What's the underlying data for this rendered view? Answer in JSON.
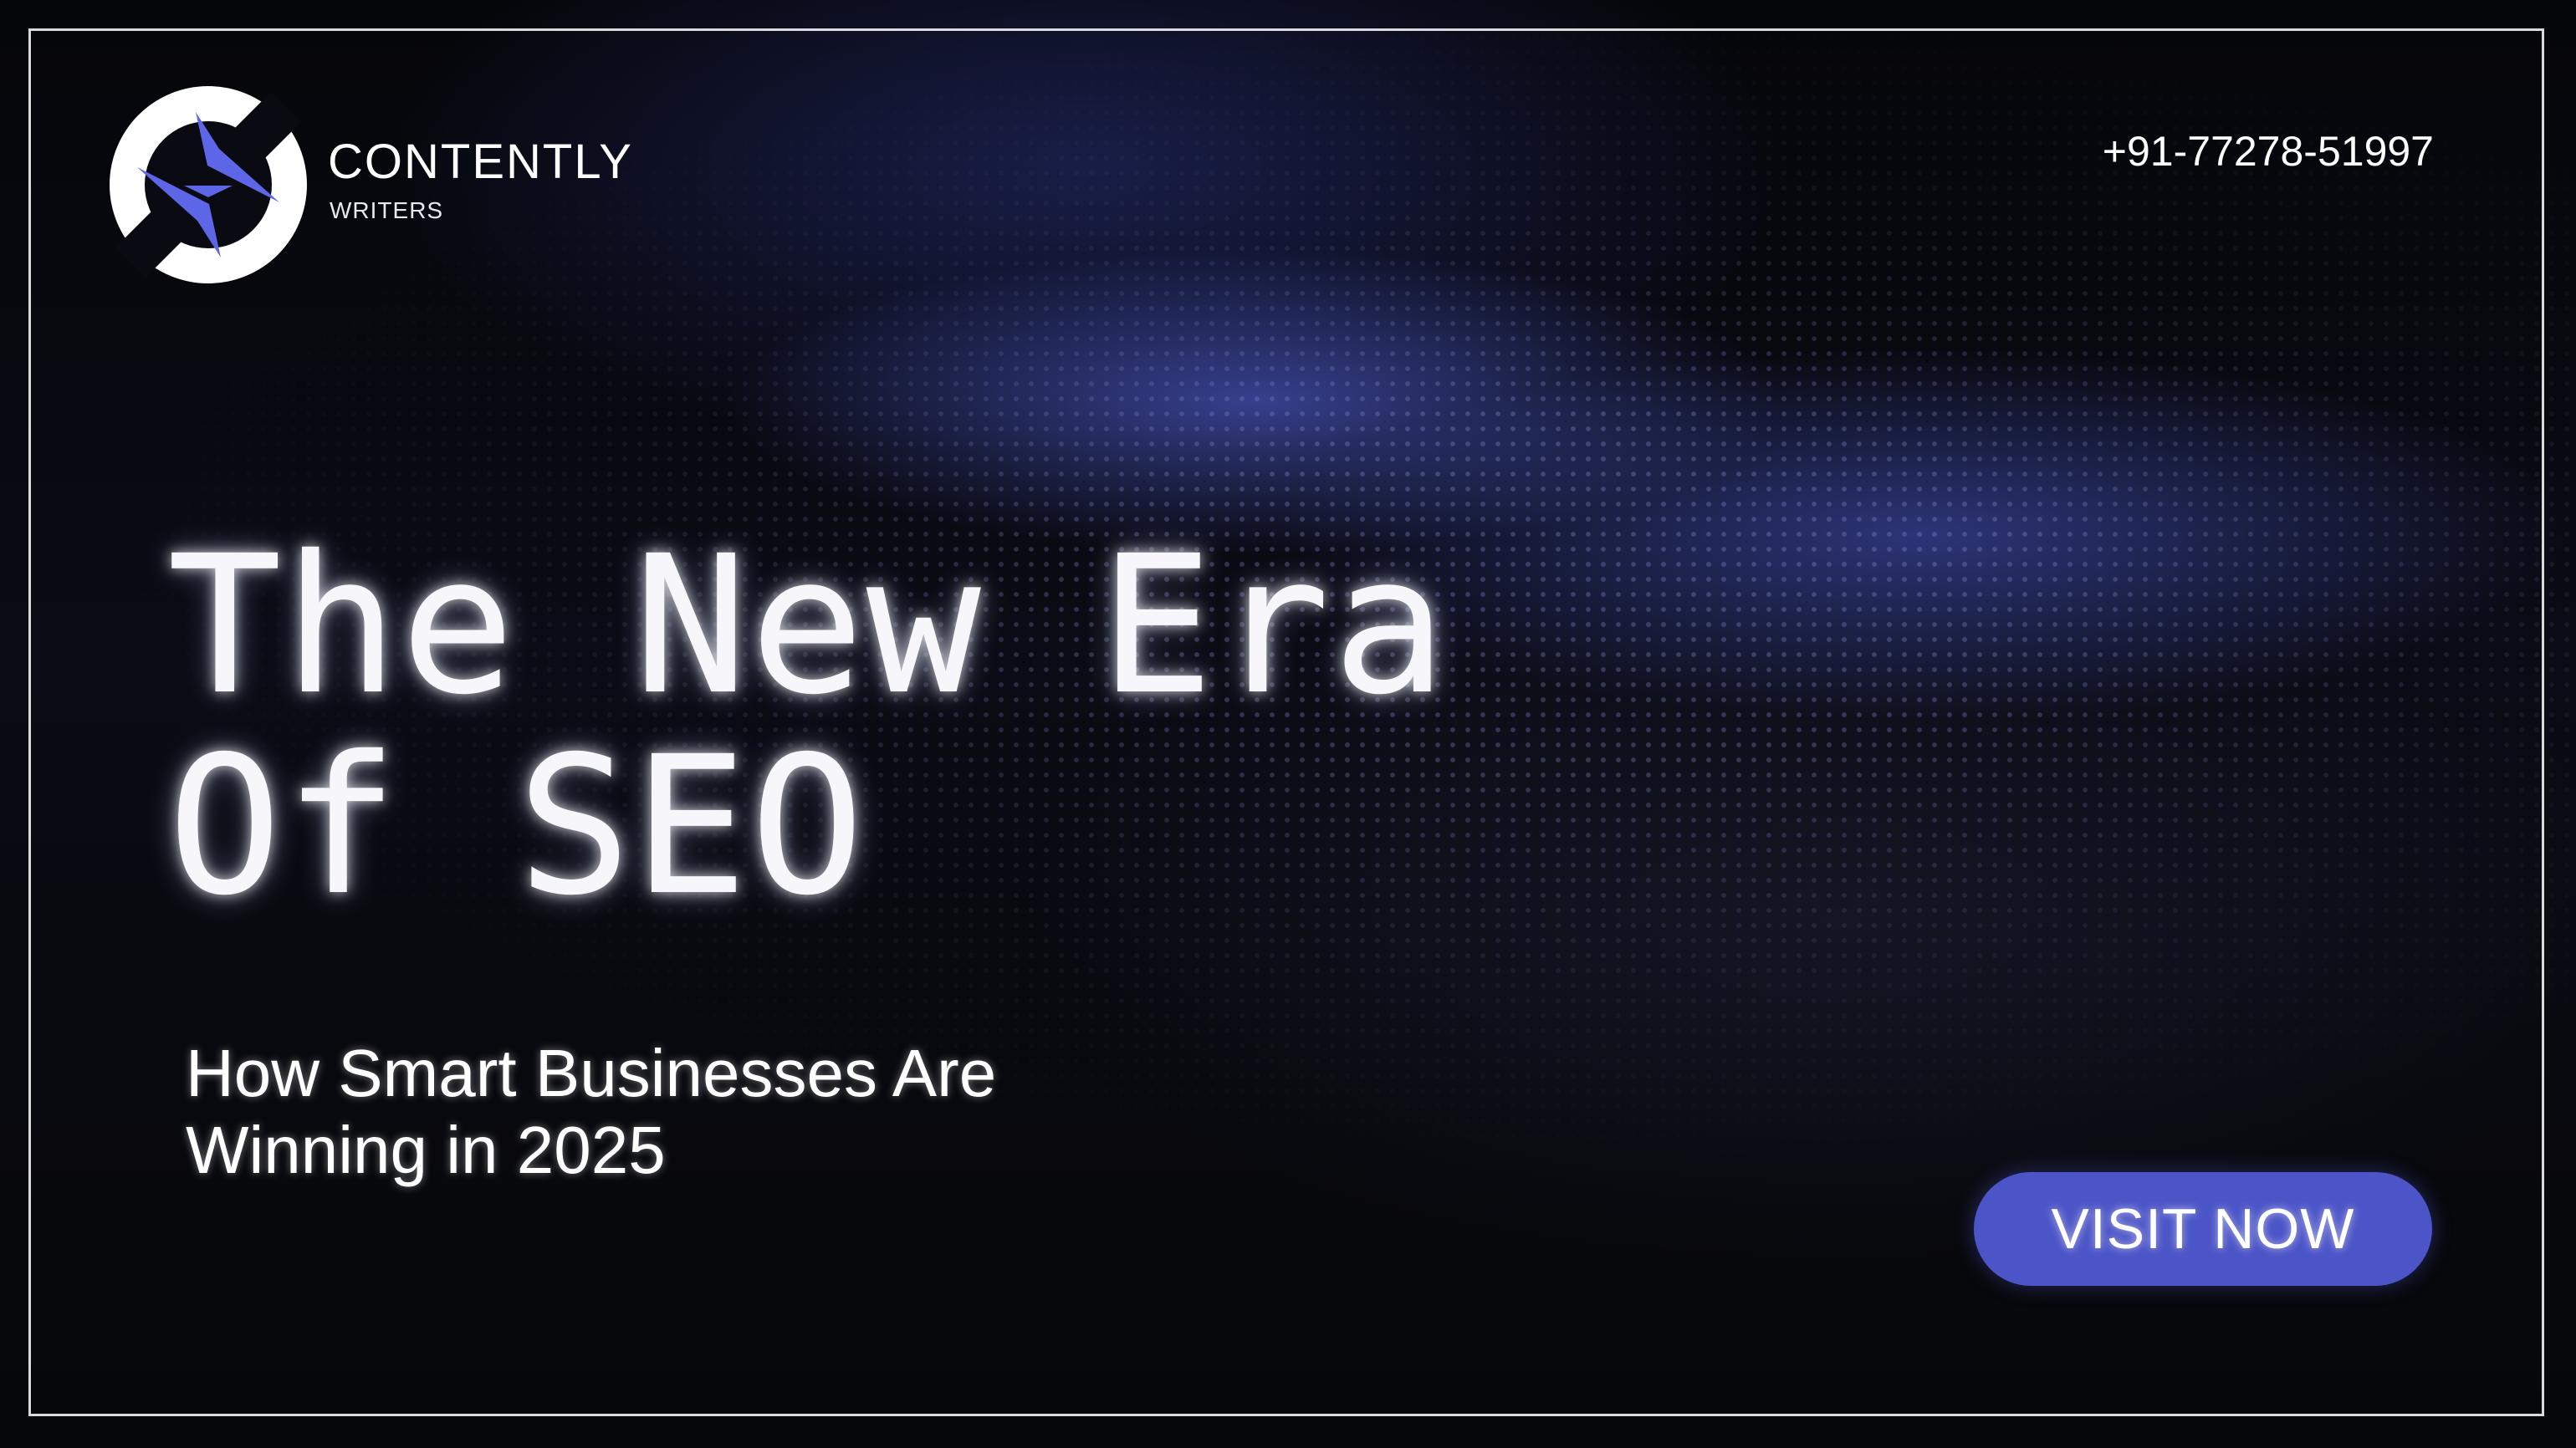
{
  "brand": {
    "name": "CONTENTLY",
    "tagline": "WRITERS",
    "logo_icon": "lightning-bolt-circle-logo",
    "accent_color": "#4c55c7"
  },
  "contact": {
    "phone": "+91-77278-51997"
  },
  "headline": {
    "line1": "The New Era",
    "line2": "Of SEO"
  },
  "subheadline": {
    "line1": "How Smart Businesses Are",
    "line2": "Winning in 2025"
  },
  "cta": {
    "label": "VISIT NOW"
  }
}
